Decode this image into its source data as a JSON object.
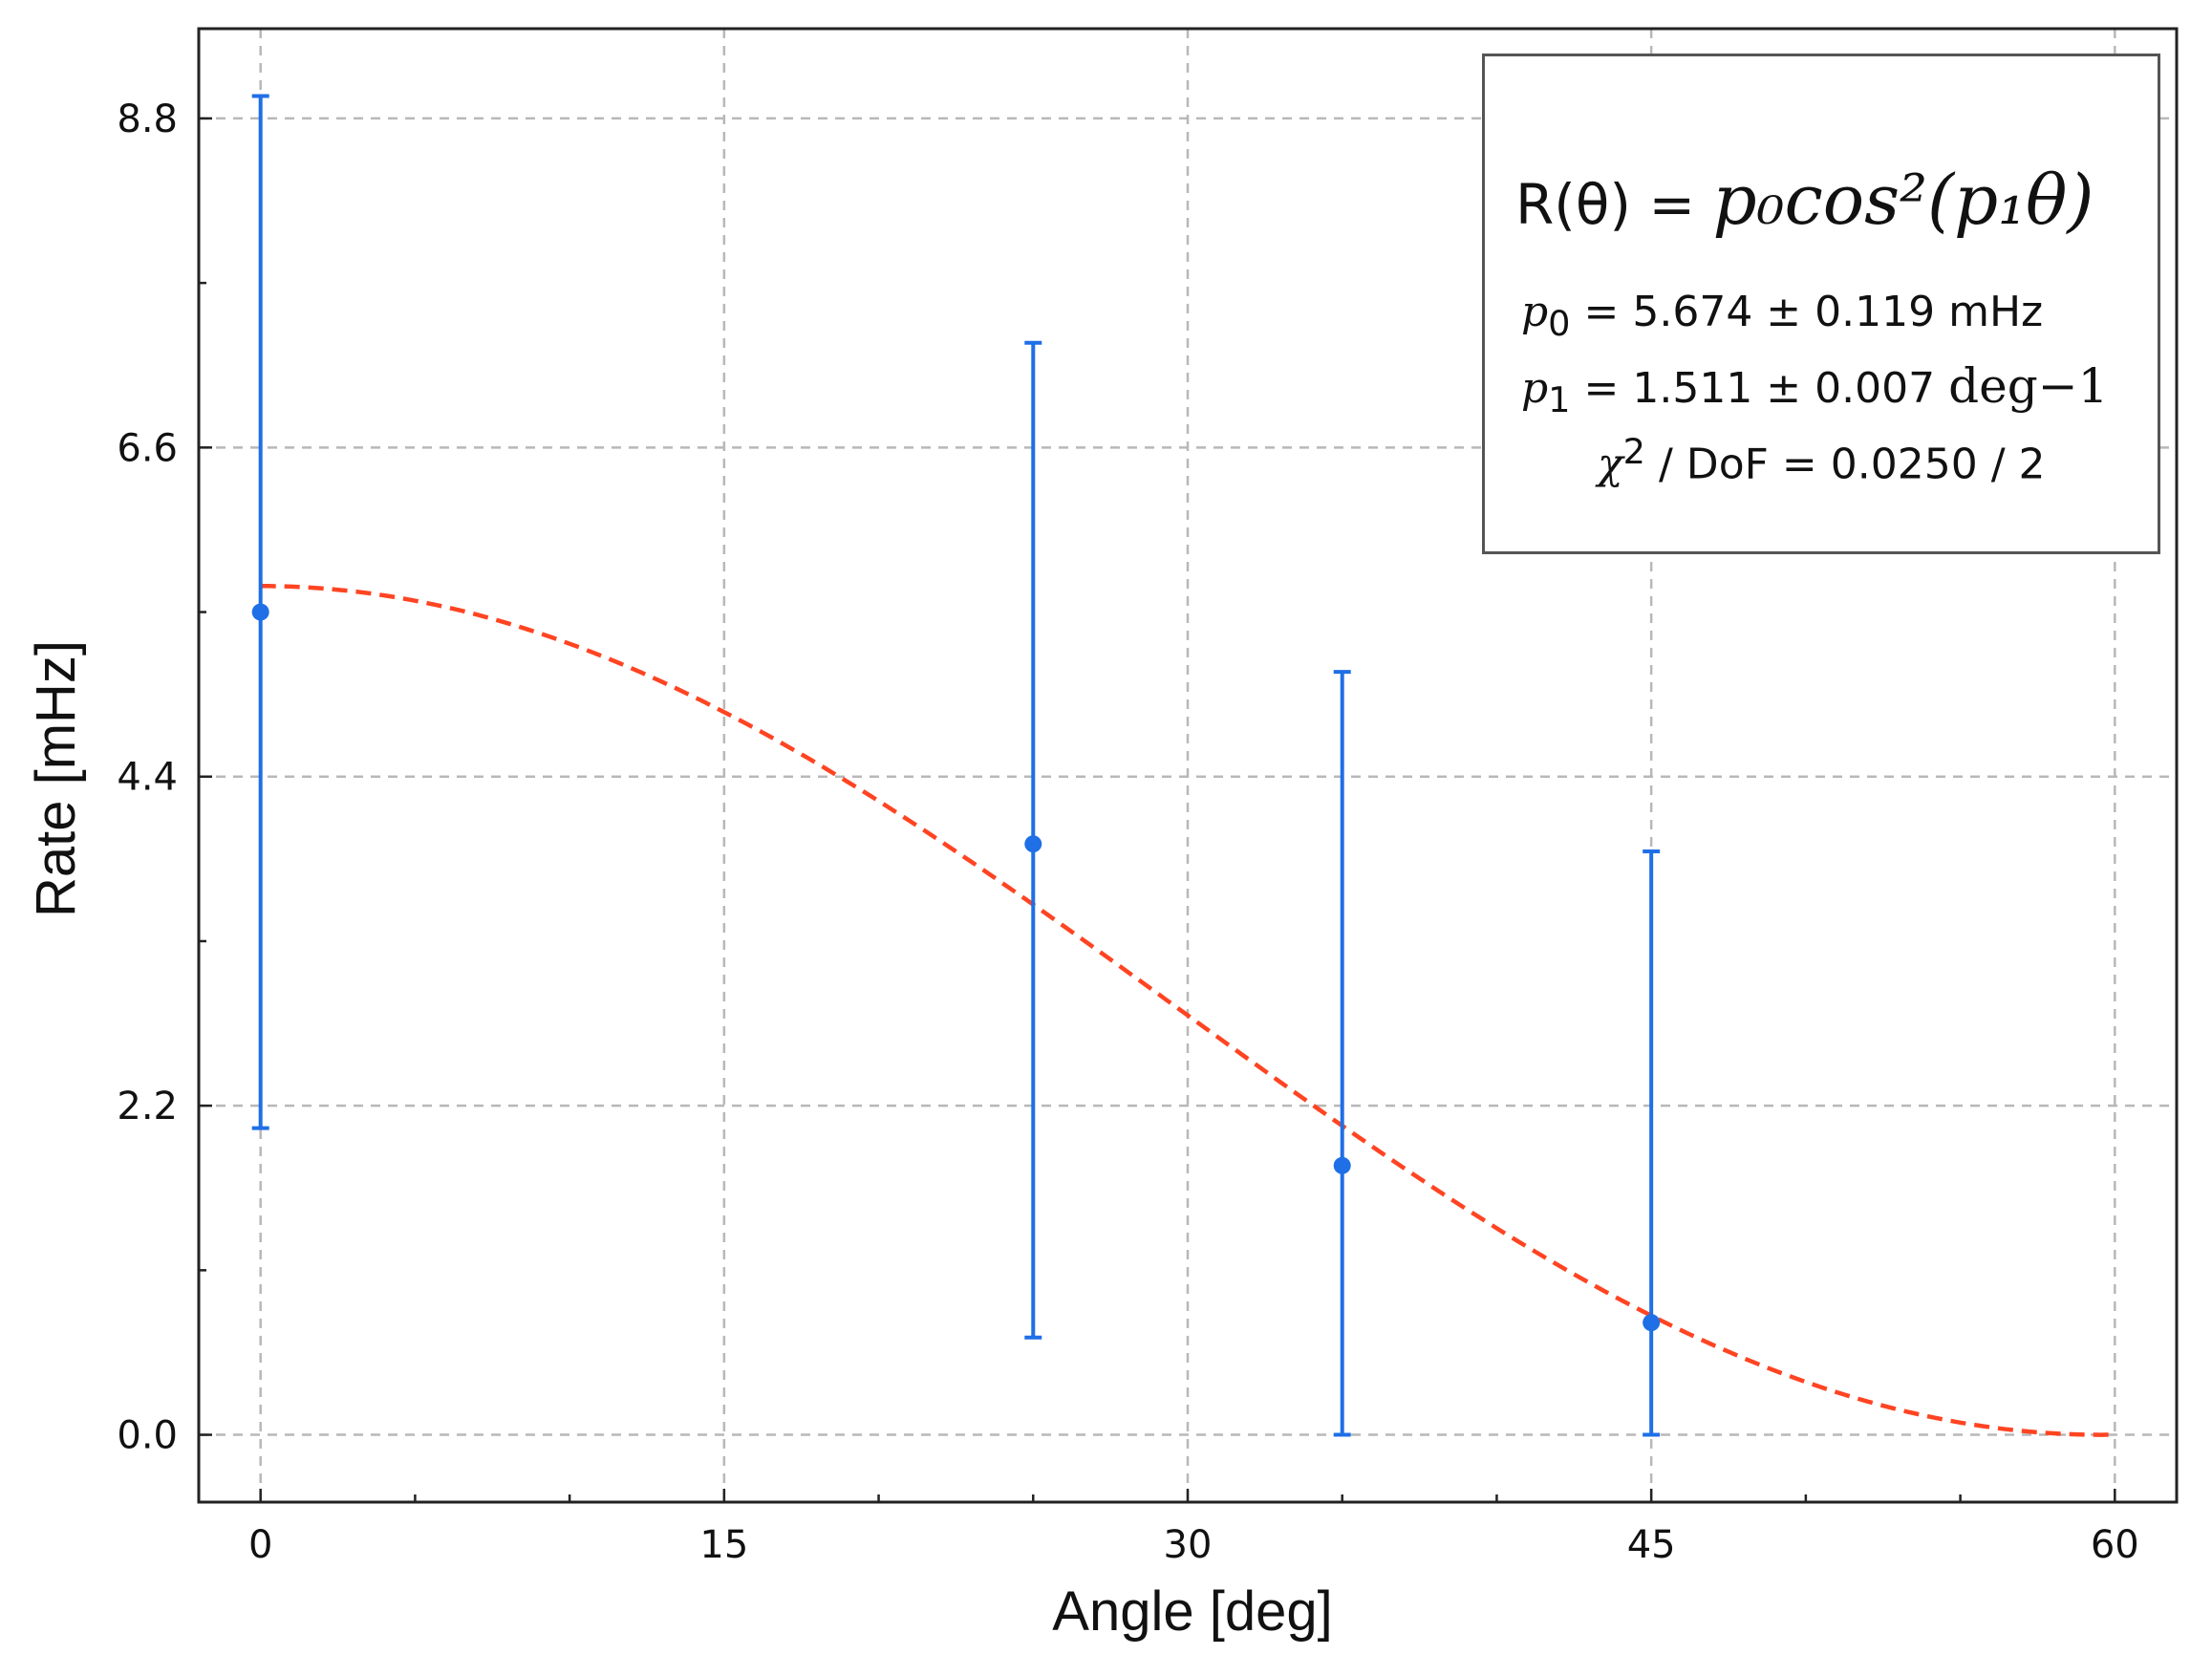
{
  "chart_data": {
    "type": "scatter",
    "xlabel": "Angle [deg]",
    "ylabel": "Rate [mHz]",
    "xlim": [
      -2,
      62
    ],
    "ylim": [
      -0.45,
      9.4
    ],
    "xticks": [
      "0",
      "15",
      "30",
      "45",
      "60"
    ],
    "xtick_values": [
      0,
      15,
      30,
      45,
      60
    ],
    "yticks": [
      "0.0",
      "2.2",
      "4.4",
      "6.6",
      "8.8"
    ],
    "ytick_values": [
      0,
      2.2,
      4.4,
      6.6,
      8.8
    ],
    "grid": true,
    "legend_position": "top-right",
    "series": [
      {
        "kind": "errorbar",
        "color": "#1f6fe6",
        "points": [
          {
            "x": 0,
            "y": 5.5,
            "ylow": 2.05,
            "yhigh": 8.95
          },
          {
            "x": 25,
            "y": 3.95,
            "ylow": 0.65,
            "yhigh": 7.3
          },
          {
            "x": 35,
            "y": 1.8,
            "ylow": 0.0,
            "yhigh": 5.1
          },
          {
            "x": 45,
            "y": 0.75,
            "ylow": 0.0,
            "yhigh": 3.9
          }
        ]
      },
      {
        "kind": "fit-curve",
        "color": "#ff4422",
        "style": "dashed",
        "function": "p0*cos^2(p1*theta)",
        "p0": 5.674,
        "p1": 1.511,
        "x_range": [
          0,
          60
        ]
      }
    ],
    "legend": {
      "formula_prefix": "R(θ) =",
      "formula_math": "p₀cos²(p₁θ)",
      "p0_symbol": "p",
      "p0_sub": "0",
      "p0_text": "= 5.674 ± 0.119 mHz",
      "p1_symbol": "p",
      "p1_sub": "1",
      "p1_text": "= 1.511 ± 0.007",
      "p1_unit": "deg−1",
      "chi_symbol": "χ",
      "chi_sup": "2",
      "chi_text": "/ DoF = 0.0250 / 2"
    }
  }
}
